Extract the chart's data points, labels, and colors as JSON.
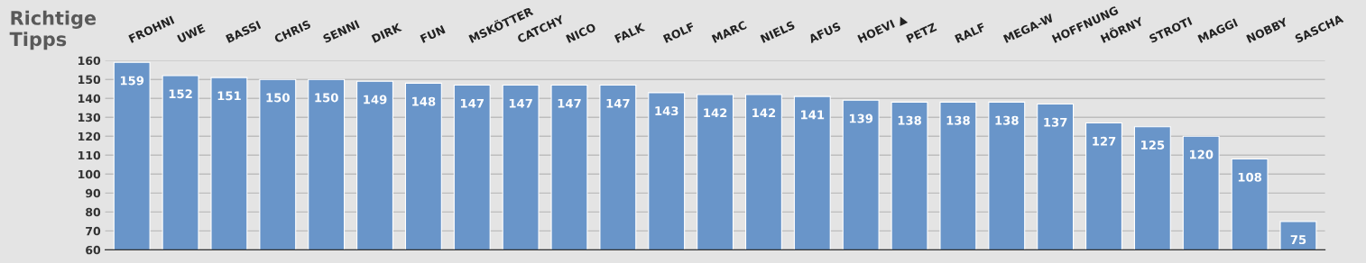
{
  "chart_data": {
    "type": "bar",
    "title": "Richtige\nTipps",
    "categories": [
      "FROHNI",
      "UWE",
      "BASSI",
      "CHRIS",
      "SENNI",
      "DIRK",
      "FUN",
      "MSKÖTTER",
      "CATCHY",
      "NICO",
      "FALK",
      "ROLF",
      "MARC",
      "NIELS",
      "AFUS",
      "HOEVI ▲",
      "PETZ",
      "RALF",
      "MEGA-W",
      "HOFFNUNG",
      "HÖRNY",
      "STROTI",
      "MAGGI",
      "NOBBY",
      "SASCHA"
    ],
    "values": [
      159,
      152,
      151,
      150,
      150,
      149,
      148,
      147,
      147,
      147,
      147,
      143,
      142,
      142,
      141,
      139,
      138,
      138,
      138,
      137,
      127,
      125,
      120,
      108,
      75
    ],
    "color": "#6995c9",
    "ylim": [
      60,
      160
    ],
    "yticks": [
      60,
      70,
      80,
      90,
      100,
      110,
      120,
      130,
      140,
      150,
      160
    ],
    "grid": "y",
    "data_labels": true
  }
}
